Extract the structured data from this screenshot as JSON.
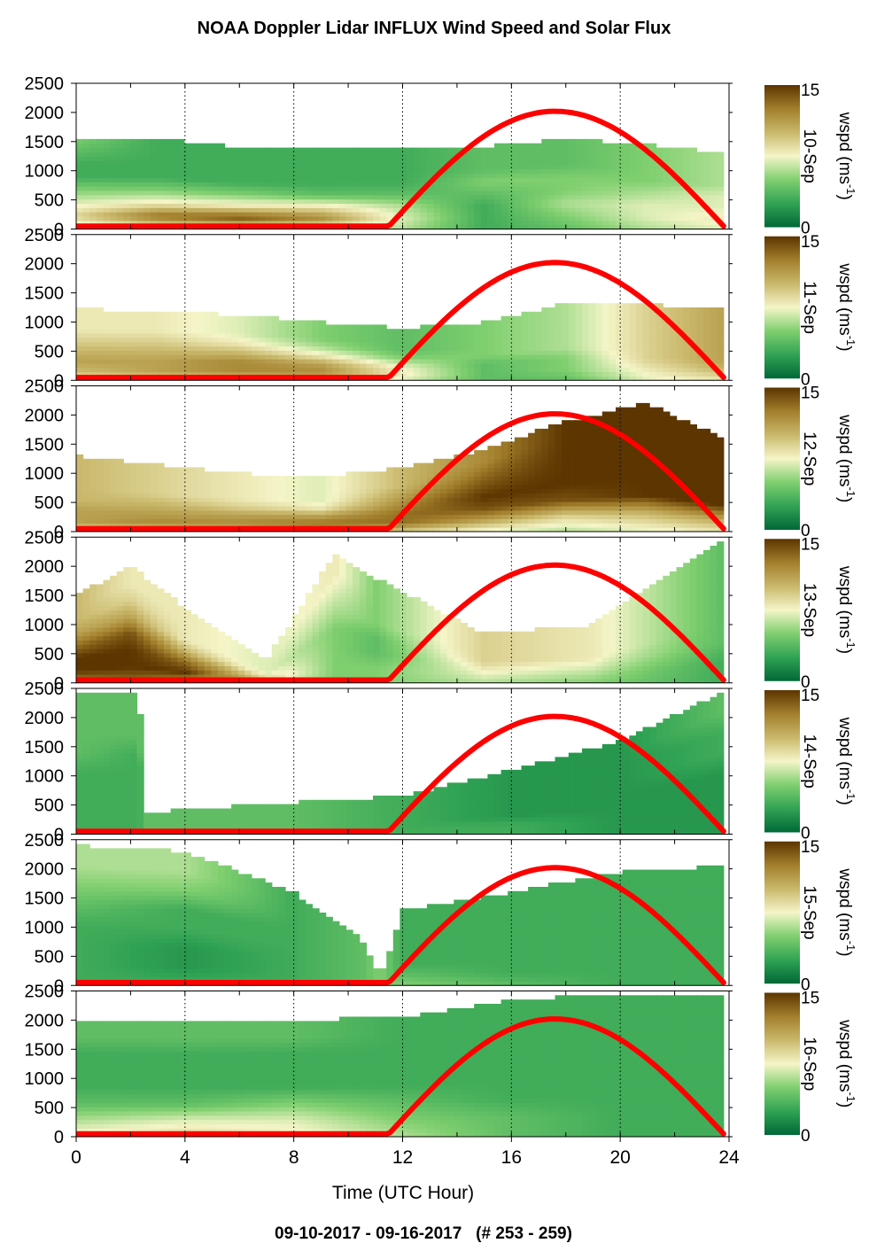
{
  "chart_data": {
    "type": "heatmap",
    "title": "NOAA Doppler Lidar INFLUX Wind Speed and Solar Flux",
    "footer": "09-10-2017 - 09-16-2017   (# 253 - 259)",
    "xlabel": "Time (UTC Hour)",
    "xlim": [
      0,
      24
    ],
    "x_ticks": [
      "0",
      "4",
      "8",
      "12",
      "16",
      "20",
      "24"
    ],
    "ylim": [
      0,
      2500
    ],
    "y_ticks": [
      "0",
      "500",
      "1000",
      "1500",
      "2000",
      "2500"
    ],
    "colorbar": {
      "label": "wspd (ms-1)",
      "label_main": "wspd (ms",
      "label_sup": "-1",
      "label_close": ")",
      "range": [
        0,
        15
      ],
      "ticks": [
        "0",
        "15"
      ],
      "colors": [
        "#006837",
        "#31a354",
        "#7fcf6f",
        "#f5f5c8",
        "#c9b86b",
        "#a27f2c",
        "#5c3500"
      ]
    },
    "solar_curve": {
      "color": "#ff0000",
      "sunrise_hour": 11.5,
      "peak_hour": 17.6,
      "sunset_hour": 23.8,
      "peak_value": 2020,
      "night_value": 50
    },
    "series": [
      {
        "name": "10-Sep",
        "profiles": [
          {
            "hour": 0,
            "top": 1580,
            "speed": [
              6,
              9,
              7,
              5,
              3,
              3,
              4,
              5
            ]
          },
          {
            "hour": 3,
            "top": 1560,
            "speed": [
              7,
              13,
              8,
              5,
              3,
              3,
              3,
              3
            ]
          },
          {
            "hour": 6,
            "top": 1400,
            "speed": [
              7,
              14,
              8,
              5,
              3,
              3,
              3,
              3
            ]
          },
          {
            "hour": 9,
            "top": 1380,
            "speed": [
              7,
              12,
              8,
              4,
              3,
              3,
              3,
              3
            ]
          },
          {
            "hour": 12,
            "top": 1400,
            "speed": [
              6,
              7,
              6,
              4,
              3,
              3,
              3,
              3
            ]
          },
          {
            "hour": 15,
            "top": 1420,
            "speed": [
              3,
              3,
              3,
              4,
              5,
              4,
              4,
              4
            ]
          },
          {
            "hour": 18,
            "top": 1550,
            "speed": [
              4,
              5,
              6,
              5,
              5,
              4,
              4,
              4
            ]
          },
          {
            "hour": 21,
            "top": 1450,
            "speed": [
              6,
              7,
              7,
              6,
              5,
              5,
              5,
              5
            ]
          },
          {
            "hour": 23.8,
            "top": 1320,
            "speed": [
              7,
              8,
              7,
              7,
              6,
              6,
              6,
              6
            ]
          }
        ]
      },
      {
        "name": "11-Sep",
        "profiles": [
          {
            "hour": 0,
            "top": 1220,
            "speed": [
              8,
              10,
              11,
              10,
              9,
              8,
              8,
              8
            ]
          },
          {
            "hour": 3,
            "top": 1200,
            "speed": [
              9,
              11,
              11,
              10,
              9,
              8,
              8,
              8
            ]
          },
          {
            "hour": 6,
            "top": 1120,
            "speed": [
              9,
              12,
              12,
              10,
              8,
              7,
              7,
              7
            ]
          },
          {
            "hour": 9,
            "top": 1000,
            "speed": [
              9,
              12,
              11,
              8,
              6,
              5,
              5,
              5
            ]
          },
          {
            "hour": 12,
            "top": 900,
            "speed": [
              7,
              8,
              7,
              5,
              4,
              4,
              4,
              4
            ]
          },
          {
            "hour": 15,
            "top": 1000,
            "speed": [
              4,
              4,
              4,
              5,
              5,
              5,
              5,
              5
            ]
          },
          {
            "hour": 18,
            "top": 1320,
            "speed": [
              4,
              5,
              5,
              6,
              6,
              6,
              6,
              6
            ]
          },
          {
            "hour": 21,
            "top": 1300,
            "speed": [
              7,
              8,
              9,
              9,
              9,
              9,
              9,
              9
            ]
          },
          {
            "hour": 23.8,
            "top": 1220,
            "speed": [
              8,
              10,
              11,
              11,
              11,
              11,
              11,
              11
            ]
          }
        ]
      },
      {
        "name": "12-Sep",
        "profiles": [
          {
            "hour": 0,
            "top": 1300,
            "speed": [
              9,
              11,
              11,
              10,
              10,
              10,
              10,
              10
            ]
          },
          {
            "hour": 3,
            "top": 1150,
            "speed": [
              9,
              12,
              11,
              10,
              9,
              9,
              9,
              9
            ]
          },
          {
            "hour": 6,
            "top": 1000,
            "speed": [
              9,
              12,
              11,
              9,
              8,
              8,
              8,
              8
            ]
          },
          {
            "hour": 9,
            "top": 950,
            "speed": [
              10,
              13,
              11,
              8,
              7,
              7,
              7,
              7
            ]
          },
          {
            "hour": 12,
            "top": 1100,
            "speed": [
              9,
              13,
              13,
              12,
              11,
              10,
              10,
              10
            ]
          },
          {
            "hour": 15,
            "top": 1400,
            "speed": [
              7,
              11,
              14,
              15,
              14,
              13,
              12,
              12
            ]
          },
          {
            "hour": 18,
            "top": 1900,
            "speed": [
              6,
              9,
              14,
              15,
              15,
              15,
              15,
              15
            ]
          },
          {
            "hour": 21,
            "top": 2200,
            "speed": [
              7,
              10,
              15,
              15,
              15,
              15,
              15,
              15
            ]
          },
          {
            "hour": 23.8,
            "top": 1600,
            "speed": [
              8,
              11,
              15,
              15,
              15,
              15,
              15,
              15
            ]
          }
        ]
      },
      {
        "name": "13-Sep",
        "profiles": [
          {
            "hour": 0,
            "top": 1500,
            "speed": [
              12,
              15,
              15,
              13,
              11,
              10,
              10,
              10
            ]
          },
          {
            "hour": 2,
            "top": 2000,
            "speed": [
              13,
              15,
              15,
              14,
              11,
              9,
              8,
              8
            ]
          },
          {
            "hour": 4,
            "top": 1300,
            "speed": [
              11,
              15,
              13,
              10,
              8,
              8,
              8,
              8
            ]
          },
          {
            "hour": 7,
            "top": 400,
            "speed": [
              8,
              9,
              8,
              7,
              7,
              7,
              7,
              7
            ]
          },
          {
            "hour": 9.5,
            "top": 2200,
            "speed": [
              5,
              5,
              5,
              5,
              6,
              7,
              8,
              8
            ]
          },
          {
            "hour": 11,
            "top": 1800,
            "speed": [
              5,
              5,
              4,
              4,
              5,
              5,
              5,
              5
            ]
          },
          {
            "hour": 15,
            "top": 850,
            "speed": [
              6,
              7,
              8,
              9,
              9,
              9,
              9,
              9
            ]
          },
          {
            "hour": 19,
            "top": 1000,
            "speed": [
              5,
              6,
              7,
              8,
              8,
              8,
              8,
              8
            ]
          },
          {
            "hour": 23.8,
            "top": 2500,
            "speed": [
              3,
              3,
              4,
              4,
              4,
              4,
              4,
              4
            ]
          }
        ]
      },
      {
        "name": "14-Sep",
        "profiles": [
          {
            "hour": 0,
            "top": 2450,
            "speed": [
              3,
              3,
              3,
              3,
              4,
              4,
              4,
              4
            ]
          },
          {
            "hour": 2.3,
            "top": 2400,
            "speed": [
              3,
              3,
              3,
              3,
              3,
              4,
              4,
              4
            ]
          },
          {
            "hour": 2.6,
            "top": 380,
            "speed": [
              4,
              4,
              4,
              4,
              4,
              4,
              4,
              4
            ]
          },
          {
            "hour": 8,
            "top": 550,
            "speed": [
              4,
              4,
              4,
              4,
              4,
              4,
              4,
              4
            ]
          },
          {
            "hour": 12,
            "top": 650,
            "speed": [
              3,
              3,
              3,
              3,
              3,
              3,
              3,
              3
            ]
          },
          {
            "hour": 16,
            "top": 1100,
            "speed": [
              3,
              3,
              2,
              2,
              2,
              2,
              2,
              2
            ]
          },
          {
            "hour": 20,
            "top": 1600,
            "speed": [
              2,
              2,
              2,
              2,
              2,
              2,
              2,
              2
            ]
          },
          {
            "hour": 23.8,
            "top": 2450,
            "speed": [
              2,
              2,
              2,
              2,
              3,
              3,
              4,
              4
            ]
          }
        ]
      },
      {
        "name": "15-Sep",
        "profiles": [
          {
            "hour": 0,
            "top": 2400,
            "speed": [
              3,
              3,
              3,
              3,
              4,
              5,
              6,
              6
            ]
          },
          {
            "hour": 4,
            "top": 2300,
            "speed": [
              3,
              2,
              2,
              3,
              3,
              5,
              6,
              6
            ]
          },
          {
            "hour": 8,
            "top": 1600,
            "speed": [
              3,
              3,
              3,
              3,
              3,
              3,
              3,
              3
            ]
          },
          {
            "hour": 10.5,
            "top": 800,
            "speed": [
              4,
              4,
              4,
              4,
              4,
              4,
              4,
              4
            ]
          },
          {
            "hour": 11.2,
            "top": 150,
            "speed": [
              5,
              5,
              5,
              5,
              5,
              5,
              5,
              5
            ]
          },
          {
            "hour": 12,
            "top": 1300,
            "speed": [
              5,
              4,
              3,
              3,
              3,
              3,
              3,
              3
            ]
          },
          {
            "hour": 16,
            "top": 1600,
            "speed": [
              4,
              3,
              3,
              3,
              3,
              3,
              3,
              3
            ]
          },
          {
            "hour": 20,
            "top": 1950,
            "speed": [
              3,
              3,
              3,
              3,
              3,
              3,
              3,
              3
            ]
          },
          {
            "hour": 23.8,
            "top": 2050,
            "speed": [
              3,
              3,
              3,
              3,
              3,
              3,
              3,
              3
            ]
          }
        ]
      },
      {
        "name": "16-Sep",
        "profiles": [
          {
            "hour": 0,
            "top": 2000,
            "speed": [
              8,
              6,
              4,
              3,
              3,
              3,
              4,
              4
            ]
          },
          {
            "hour": 4,
            "top": 1980,
            "speed": [
              9,
              7,
              4,
              3,
              3,
              3,
              4,
              4
            ]
          },
          {
            "hour": 8,
            "top": 2000,
            "speed": [
              8,
              7,
              5,
              3,
              3,
              3,
              4,
              4
            ]
          },
          {
            "hour": 12,
            "top": 2050,
            "speed": [
              6,
              5,
              4,
              3,
              3,
              3,
              3,
              3
            ]
          },
          {
            "hour": 16,
            "top": 2350,
            "speed": [
              4,
              4,
              3,
              3,
              3,
              3,
              3,
              3
            ]
          },
          {
            "hour": 20,
            "top": 2450,
            "speed": [
              3,
              3,
              3,
              3,
              3,
              3,
              3,
              3
            ]
          },
          {
            "hour": 23.8,
            "top": 2400,
            "speed": [
              3,
              3,
              3,
              3,
              3,
              3,
              3,
              3
            ]
          }
        ]
      }
    ]
  }
}
